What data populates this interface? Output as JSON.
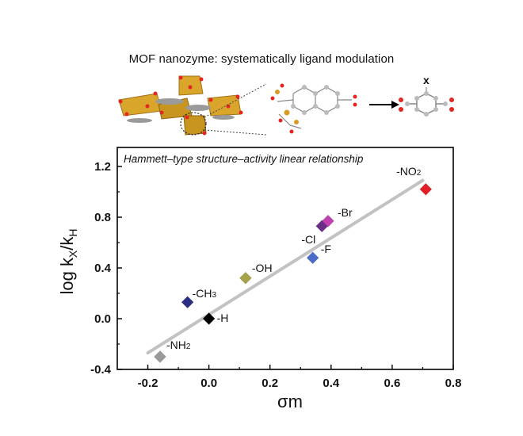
{
  "header": {
    "title": "MOF nanozyme: systematically ligand modulation",
    "molecule_label": "x"
  },
  "chart_data": {
    "type": "scatter",
    "title": "Hammett–type structure–activity linear relationship",
    "xlabel": "σm",
    "ylabel_main": "log k",
    "ylabel_sub1": "X",
    "ylabel_mid": "/k",
    "ylabel_sub2": "H",
    "xlim": [
      -0.3,
      0.8
    ],
    "ylim": [
      -0.4,
      1.35
    ],
    "xticks": [
      -0.2,
      0.0,
      0.2,
      0.4,
      0.6,
      0.8
    ],
    "xtick_labels": [
      "-0.2",
      "0.0",
      "0.2",
      "0.4",
      "0.6",
      "0.8"
    ],
    "yticks": [
      -0.4,
      0.0,
      0.4,
      0.8,
      1.2
    ],
    "ytick_labels": [
      "-0.4",
      "0.0",
      "0.4",
      "0.8",
      "1.2"
    ],
    "points": [
      {
        "label": "-NH",
        "sub": "2",
        "x": -0.16,
        "y": -0.3,
        "color": "#9a9a9a"
      },
      {
        "label": "-CH",
        "sub": "3",
        "x": -0.07,
        "y": 0.13,
        "color": "#2a2d84"
      },
      {
        "label": "-H",
        "sub": "",
        "x": 0.0,
        "y": 0.0,
        "color": "#000000"
      },
      {
        "label": "-OH",
        "sub": "",
        "x": 0.12,
        "y": 0.32,
        "color": "#a6a34a"
      },
      {
        "label": "-F",
        "sub": "",
        "x": 0.34,
        "y": 0.48,
        "color": "#4a6bc8"
      },
      {
        "label": "-Cl",
        "sub": "",
        "x": 0.37,
        "y": 0.73,
        "color": "#6a2e84"
      },
      {
        "label": "-Br",
        "sub": "",
        "x": 0.39,
        "y": 0.77,
        "color": "#c13fb0"
      },
      {
        "label": "-NO",
        "sub": "2",
        "x": 0.71,
        "y": 1.02,
        "color": "#e21e26"
      }
    ],
    "fit_line": {
      "x": [
        -0.2,
        0.7
      ],
      "y": [
        -0.27,
        1.09
      ],
      "color": "#c2c2c2"
    },
    "grid": false,
    "legend": "none"
  }
}
